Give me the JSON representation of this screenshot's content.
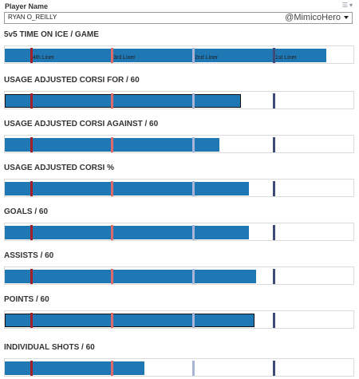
{
  "filter": {
    "label": "Player Name",
    "selected": "RYAN O_REILLY",
    "handle": "@MimicoHero"
  },
  "tiers": [
    "4th Liner",
    "3rd Liner",
    "2nd Liner",
    "1st Liner"
  ],
  "tier_colors": {
    "4th Liner": "#a31f2a",
    "3rd Liner": "#e06a6a",
    "2nd Liner": "#a9b4d6",
    "1st Liner": "#3e4a78"
  },
  "bar_color": "#1f77b4",
  "metrics": [
    {
      "title": "5v5 TIME ON ICE / GAME",
      "fill": 0.919
    },
    {
      "title": "USAGE ADJUSTED CORSI FOR / 60",
      "fill": 0.674
    },
    {
      "title": "USAGE ADJUSTED CORSI AGAINST / 60",
      "fill": 0.613
    },
    {
      "title": "USAGE ADJUSTED CORSI %",
      "fill": 0.697
    },
    {
      "title": "GOALS / 60",
      "fill": 0.697
    },
    {
      "title": "ASSISTS / 60",
      "fill": 0.717
    },
    {
      "title": "POINTS / 60",
      "fill": 0.713
    },
    {
      "title": "INDIVIDUAL SHOTS / 60",
      "fill": 0.399
    }
  ]
}
